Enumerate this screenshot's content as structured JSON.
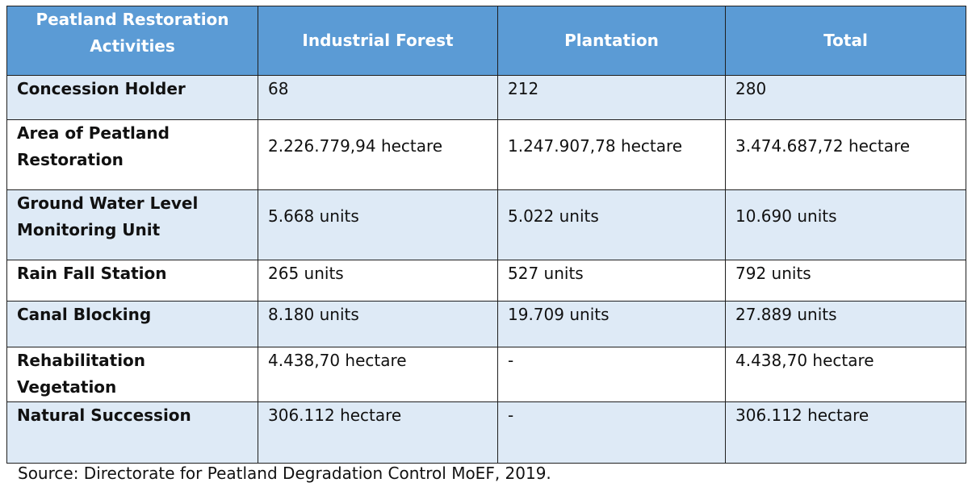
{
  "table": {
    "headers": [
      "Peatland Restoration Activities",
      "Industrial Forest",
      "Plantation",
      "Total"
    ],
    "rows": [
      {
        "label": "Concession Holder",
        "industrial_forest": "68",
        "plantation": "212",
        "total": "280"
      },
      {
        "label": "Area of Peatland Restoration",
        "industrial_forest": "2.226.779,94 hectare",
        "plantation": "1.247.907,78 hectare",
        "total": "3.474.687,72 hectare"
      },
      {
        "label": "Ground Water Level Monitoring Unit",
        "industrial_forest": "5.668 units",
        "plantation": "5.022 units",
        "total": "10.690 units"
      },
      {
        "label": "Rain Fall Station",
        "industrial_forest": "265 units",
        "plantation": "527 units",
        "total": "792 units"
      },
      {
        "label": "Canal Blocking",
        "industrial_forest": "8.180 units",
        "plantation": "19.709 units",
        "total": "27.889 units"
      },
      {
        "label": "Rehabilitation Vegetation",
        "industrial_forest": "4.438,70 hectare",
        "plantation": "-",
        "total": "4.438,70 hectare"
      },
      {
        "label": "Natural Succession",
        "industrial_forest": "306.112 hectare",
        "plantation": "-",
        "total": "306.112 hectare"
      }
    ]
  },
  "source": "Source: Directorate for Peatland Degradation Control MoEF, 2019.",
  "colors": {
    "header_bg": "#5b9bd5",
    "header_text": "#ffffff",
    "alt_row_bg": "#deeaf6",
    "plain_row_bg": "#ffffff",
    "border": "#1f1f1f"
  }
}
